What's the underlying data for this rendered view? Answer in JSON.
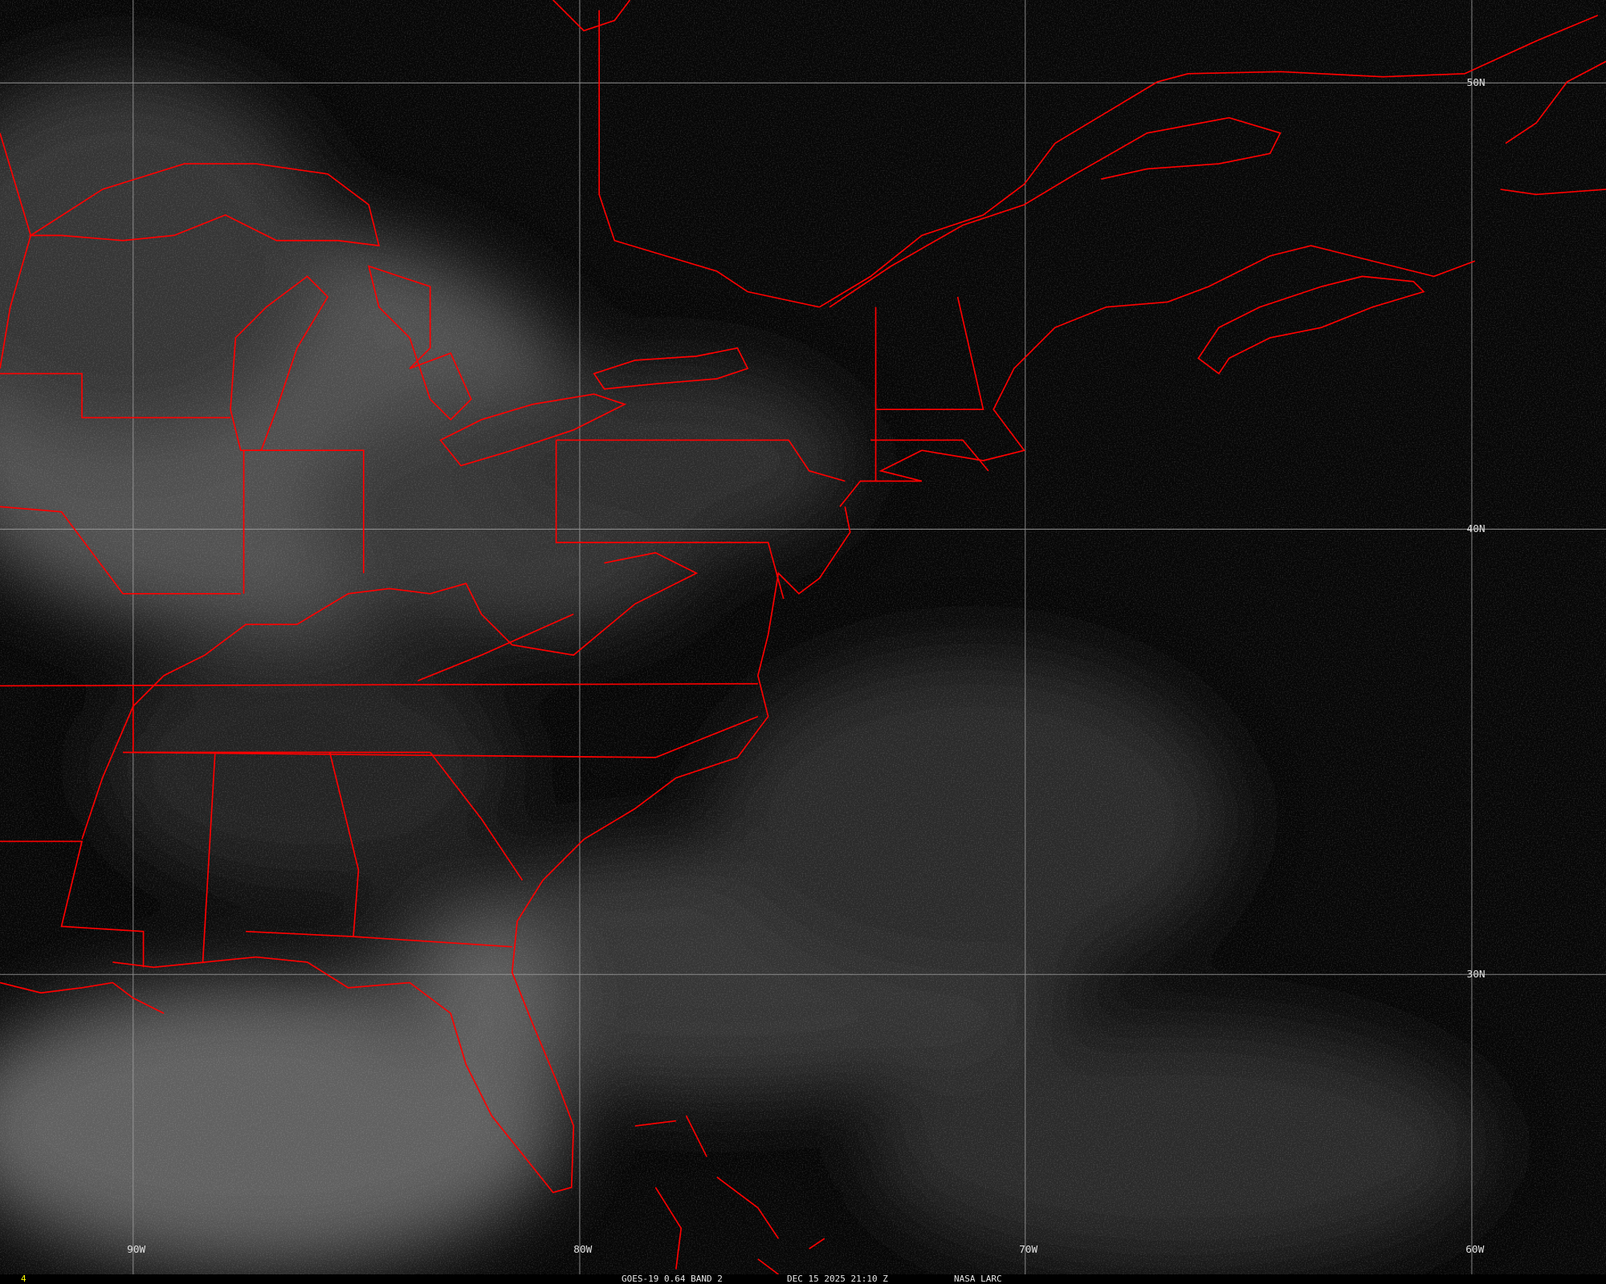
{
  "caption": {
    "satellite_product": "GOES-19 0.64 BAND 2",
    "datetime": "DEC 15 2025 21:10 Z",
    "source": "NASA LARC",
    "frame_indicator": "4"
  },
  "grid": {
    "longitude_labels": [
      "90W",
      "80W",
      "70W",
      "60W"
    ],
    "latitude_labels": [
      "50N",
      "40N",
      "30N"
    ]
  },
  "colors": {
    "boundaries": "#ff0000",
    "grid": "#a0a0a0",
    "frame_indicator": "#ffff00",
    "background": "#050505"
  }
}
